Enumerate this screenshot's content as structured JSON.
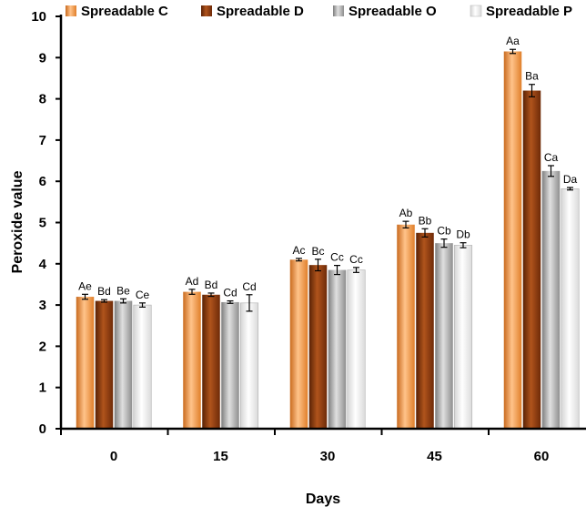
{
  "chart_data": {
    "type": "bar",
    "title": "",
    "xlabel": "Days",
    "ylabel": "Peroxide value",
    "categories": [
      "0",
      "15",
      "30",
      "45",
      "60"
    ],
    "ylim": [
      0,
      10
    ],
    "yticks": [
      0,
      1,
      2,
      3,
      4,
      5,
      6,
      7,
      8,
      9,
      10
    ],
    "grid": false,
    "legend_position": "top",
    "series": [
      {
        "name": "Spreadable C",
        "color": "#F39A48",
        "values": [
          3.2,
          3.32,
          4.1,
          4.95,
          9.15
        ],
        "errors": [
          0.06,
          0.06,
          0.03,
          0.08,
          0.05
        ],
        "labels": [
          "Ae",
          "Ad",
          "Ac",
          "Ab",
          "Aa"
        ]
      },
      {
        "name": "Spreadable D",
        "color": "#8B3A0E",
        "values": [
          3.1,
          3.25,
          3.97,
          4.75,
          8.2
        ],
        "errors": [
          0.03,
          0.04,
          0.14,
          0.1,
          0.15
        ],
        "labels": [
          "Bd",
          "Bd",
          "Bc",
          "Bb",
          "Ba"
        ]
      },
      {
        "name": "Spreadable O",
        "color": "#A8A8A8",
        "values": [
          3.1,
          3.07,
          3.85,
          4.5,
          6.25
        ],
        "errors": [
          0.05,
          0.03,
          0.11,
          0.1,
          0.13
        ],
        "labels": [
          "Be",
          "Cd",
          "Cc",
          "Cb",
          "Ca"
        ]
      },
      {
        "name": "Spreadable P",
        "color": "#F2F2F2",
        "values": [
          3.0,
          3.05,
          3.85,
          4.45,
          5.82
        ],
        "errors": [
          0.05,
          0.2,
          0.06,
          0.06,
          0.03
        ],
        "labels": [
          "Ce",
          "Cd",
          "Cc",
          "Db",
          "Da"
        ]
      }
    ]
  }
}
